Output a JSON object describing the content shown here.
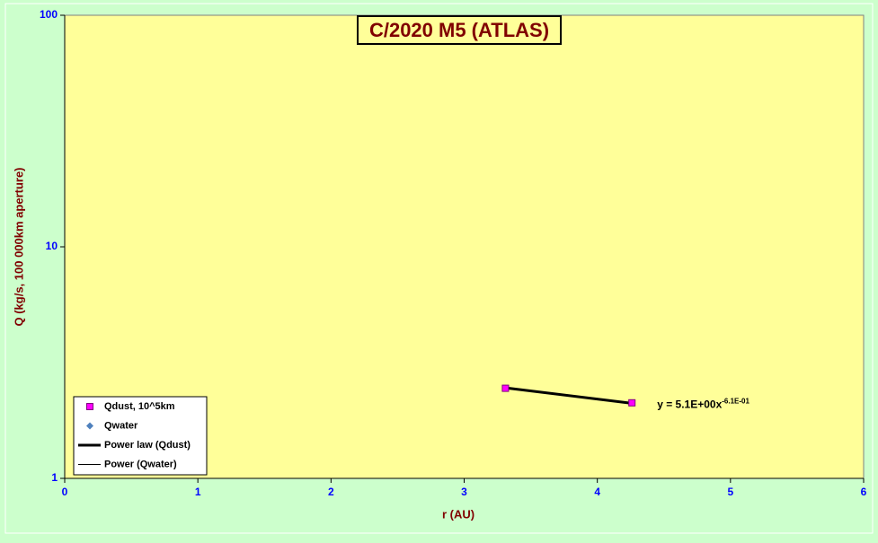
{
  "chart_data": {
    "type": "scatter",
    "title": "C/2020 M5 (ATLAS)",
    "x_label": "r (AU)",
    "y_label": "Q (kg/s, 100 000km aperture)",
    "xlim": [
      0,
      6
    ],
    "xticks": [
      0,
      1,
      2,
      3,
      4,
      5,
      6
    ],
    "ylim": [
      1,
      100
    ],
    "yticks": [
      1,
      10,
      100
    ],
    "y_scale": "log",
    "legend": "bottom-left",
    "series": [
      {
        "name": "Qdust, 10^5km",
        "type": "scatter",
        "marker": "square",
        "color": "#ff00ff",
        "x": [
          3.31,
          4.26
        ],
        "values": [
          2.45,
          2.12
        ]
      },
      {
        "name": "Qwater",
        "type": "scatter",
        "marker": "diamond",
        "color": "#4f81bd",
        "x": [],
        "values": []
      },
      {
        "name": "Power law (Qdust)",
        "type": "line",
        "line_width": 3,
        "color": "#000000",
        "x": [
          3.31,
          4.26
        ],
        "values": [
          2.46,
          2.11
        ]
      },
      {
        "name": "Power (Qwater)",
        "type": "line",
        "line_width": 1,
        "color": "#000000",
        "x": [],
        "values": []
      }
    ],
    "annotation": {
      "text": "y = 5.1E+00x",
      "superscript": "-6.1E-01"
    }
  }
}
